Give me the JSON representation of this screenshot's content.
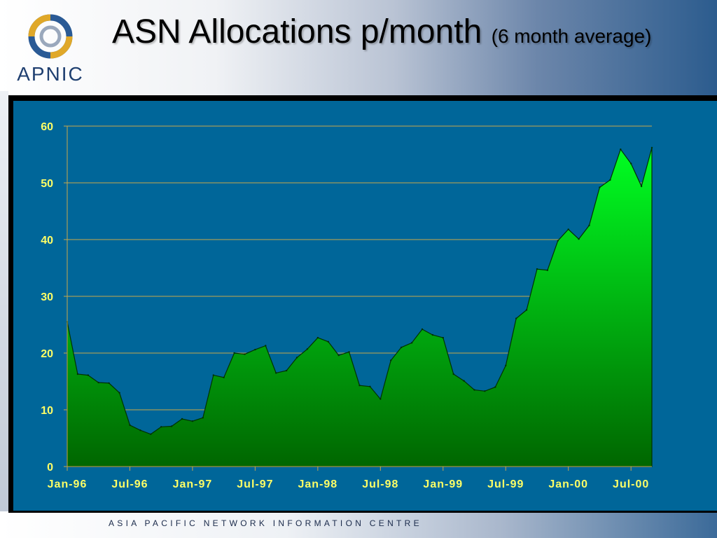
{
  "header": {
    "title_main": "ASN Allocations p/month",
    "title_sub": "(6 month average)",
    "logo_text": "APNIC",
    "logo_icon": "apnic-ring-logo-icon"
  },
  "footer": {
    "text": "ASIA PACIFIC NETWORK INFORMATION CENTRE"
  },
  "colors": {
    "chart_bg": "#006699",
    "area_top": "#00ff22",
    "area_bottom": "#006600",
    "gridline": "#c8a84a",
    "tick_label": "#ffff66"
  },
  "chart_data": {
    "type": "area",
    "title": "ASN Allocations p/month (6 month average)",
    "xlabel": "",
    "ylabel": "",
    "ylim": [
      0,
      60
    ],
    "yticks": [
      0,
      10,
      20,
      30,
      40,
      50,
      60
    ],
    "xtick_labels": [
      "Jan-96",
      "Jul-96",
      "Jan-97",
      "Jul-97",
      "Jan-98",
      "Jul-98",
      "Jan-99",
      "Jul-99",
      "Jan-00",
      "Jul-00"
    ],
    "grid": true,
    "legend": "none",
    "series": [
      {
        "values": [
          25.5,
          16.3,
          16.1,
          14.8,
          14.7,
          13.0,
          7.3,
          6.4,
          5.7,
          7.0,
          7.1,
          8.4,
          8.0,
          8.6,
          16.1,
          15.7,
          20.0,
          19.8,
          20.6,
          21.3,
          16.5,
          16.9,
          19.2,
          20.7,
          22.7,
          22.0,
          19.6,
          20.2,
          14.3,
          14.1,
          11.9,
          18.7,
          21.0,
          21.8,
          24.2,
          23.2,
          22.7,
          16.3,
          15.1,
          13.5,
          13.3,
          14.0,
          17.8,
          26.1,
          27.6,
          34.8,
          34.6,
          39.8,
          41.8,
          40.1,
          42.5,
          49.2,
          50.5,
          55.9,
          53.4,
          49.4,
          56.2
        ]
      }
    ]
  }
}
